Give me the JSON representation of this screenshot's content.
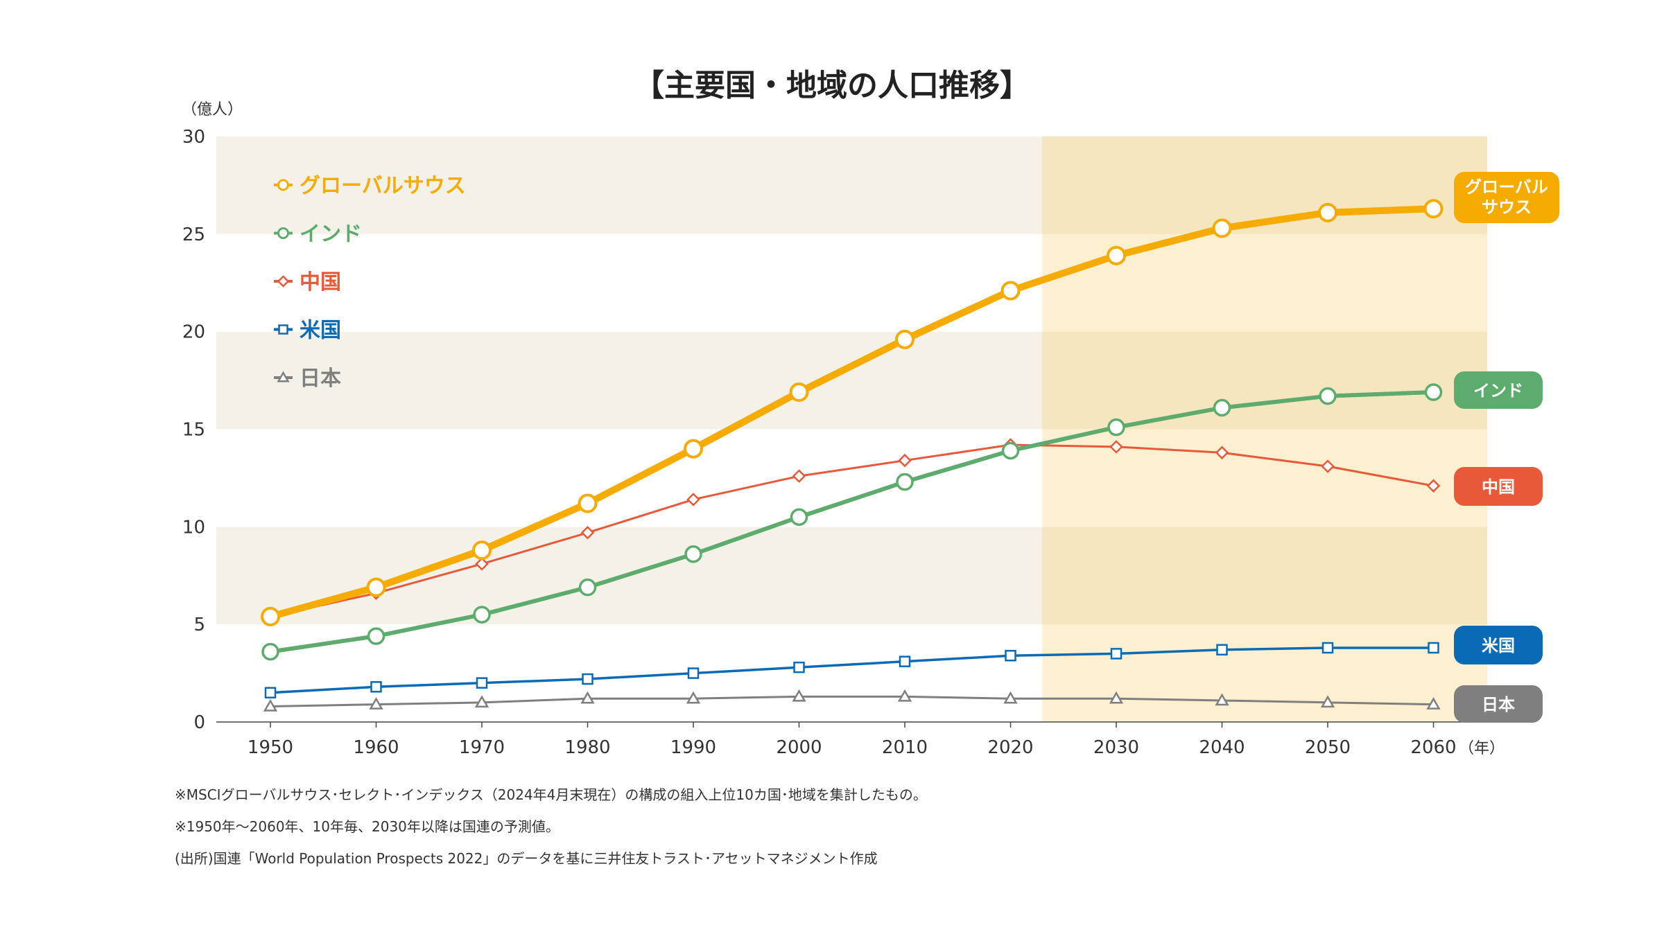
{
  "chart_data": {
    "type": "line",
    "title": "【主要国・地域の人口推移】",
    "ylabel": "（億人）",
    "xlabel": "（年）",
    "ylim": [
      0,
      30
    ],
    "yticks": [
      0,
      5,
      10,
      15,
      20,
      25,
      30
    ],
    "x": [
      1950,
      1960,
      1970,
      1980,
      1990,
      2000,
      2010,
      2020,
      2030,
      2040,
      2050,
      2060
    ],
    "projection_start": 2023,
    "series": [
      {
        "name": "グローバルサウス",
        "end_label": [
          "グローバル",
          "サウス"
        ],
        "color": "#F5AB00",
        "marker": "circle-large",
        "values": [
          5.4,
          6.9,
          8.8,
          11.2,
          14.0,
          16.9,
          19.6,
          22.1,
          23.9,
          25.3,
          26.1,
          26.3
        ]
      },
      {
        "name": "インド",
        "end_label": [
          "インド"
        ],
        "color": "#5EAB6E",
        "marker": "circle",
        "values": [
          3.6,
          4.4,
          5.5,
          6.9,
          8.6,
          10.5,
          12.3,
          13.9,
          15.1,
          16.1,
          16.7,
          16.9
        ]
      },
      {
        "name": "中国",
        "end_label": [
          "中国"
        ],
        "color": "#E8593A",
        "marker": "diamond",
        "values": [
          5.4,
          6.6,
          8.1,
          9.7,
          11.4,
          12.6,
          13.4,
          14.2,
          14.1,
          13.8,
          13.1,
          12.1
        ]
      },
      {
        "name": "米国",
        "end_label": [
          "米国"
        ],
        "color": "#0B6AB5",
        "marker": "square",
        "values": [
          1.5,
          1.8,
          2.0,
          2.2,
          2.5,
          2.8,
          3.1,
          3.4,
          3.5,
          3.7,
          3.8,
          3.8
        ]
      },
      {
        "name": "日本",
        "end_label": [
          "日本"
        ],
        "color": "#7F7F7F",
        "marker": "triangle",
        "values": [
          0.8,
          0.9,
          1.0,
          1.2,
          1.2,
          1.3,
          1.3,
          1.2,
          1.2,
          1.1,
          1.0,
          0.9
        ]
      }
    ]
  },
  "footnotes": [
    "※MSCIグローバルサウス･セレクト･インデックス（2024年4月末現在）の構成の組入上位10カ国･地域を集計したもの。",
    "※1950年～2060年、10年毎、2030年以降は国連の予測値。",
    "(出所)国連「World Population Prospects 2022」のデータを基に三井住友トラスト･アセットマネジメント作成"
  ]
}
